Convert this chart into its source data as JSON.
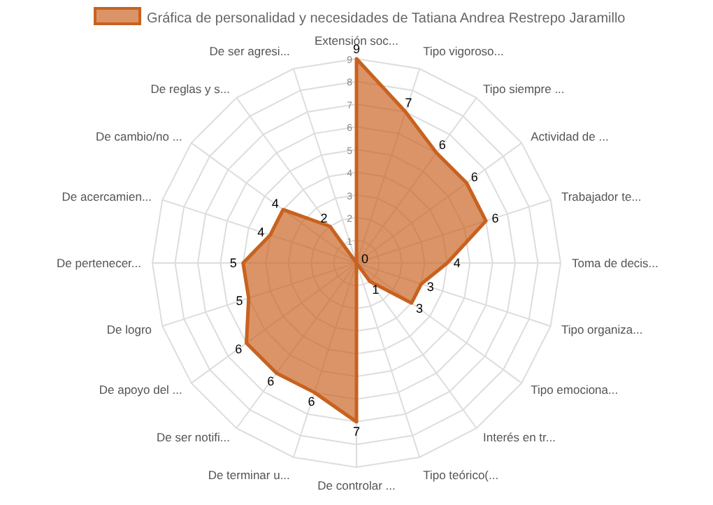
{
  "chart_data": {
    "type": "radar",
    "categories": [
      "Extensión soc...",
      "Tipo vigoroso...",
      "Tipo siempre ...",
      "Actividad de ...",
      "Trabajador te...",
      "Toma de decis...",
      "Tipo organiza...",
      "Tipo emociona...",
      "Interés en tr...",
      "Tipo teórico(...",
      "De controlar ...",
      "De terminar u...",
      "De ser notifi...",
      "De apoyo del ...",
      "De logro",
      "De pertenecer...",
      "De acercamien...",
      "De cambio/no ...",
      "De reglas y s...",
      "De ser agresi..."
    ],
    "series": [
      {
        "name": "Gráfica de personalidad y necesidades de Tatiana Andrea Restrepo Jaramillo",
        "color": "#c8621f",
        "values": [
          9,
          7,
          6,
          6,
          6,
          4,
          3,
          3,
          1,
          0,
          7,
          6,
          6,
          6,
          5,
          5,
          4,
          4,
          2,
          0
        ],
        "value_labels": [
          "9",
          "7",
          "6",
          "6",
          "6",
          "4",
          "3",
          "3",
          "1",
          "0",
          "7",
          "6",
          "6",
          "6",
          "5",
          "5",
          "4",
          "4",
          "2",
          null
        ]
      }
    ],
    "ylim": [
      0,
      9
    ],
    "yticks": [
      1,
      2,
      3,
      4,
      5,
      6,
      7,
      8,
      9
    ],
    "grid": true,
    "legend": "top"
  }
}
